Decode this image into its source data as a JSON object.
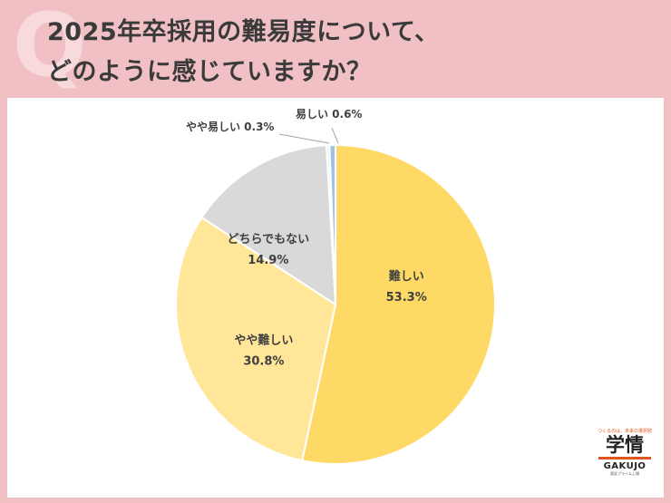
{
  "title": {
    "line1": "2025年卒採用の難易度について、",
    "line2": "どのように感じていますか？"
  },
  "chart_data": {
    "type": "pie",
    "start_angle_deg": 0,
    "direction": "clockwise",
    "slices": [
      {
        "label": "難しい",
        "value": 53.3,
        "value_label": "53.3%",
        "color": "#fed966"
      },
      {
        "label": "やや難しい",
        "value": 30.8,
        "value_label": "30.8%",
        "color": "#ffe699"
      },
      {
        "label": "どちらでもない",
        "value": 14.9,
        "value_label": "14.9%",
        "color": "#d9d9d9"
      },
      {
        "label": "やや易しい",
        "value": 0.3,
        "value_label": "0.3%",
        "color": "#f2f2f2"
      },
      {
        "label": "易しい",
        "value": 0.6,
        "value_label": "0.6%",
        "color": "#9dc3e6"
      }
    ]
  },
  "logo": {
    "tagline": "つくるのは、未来の選択肢",
    "kanji": "学情",
    "latin": "GAKUJO",
    "subline": "東証プライム上場"
  }
}
